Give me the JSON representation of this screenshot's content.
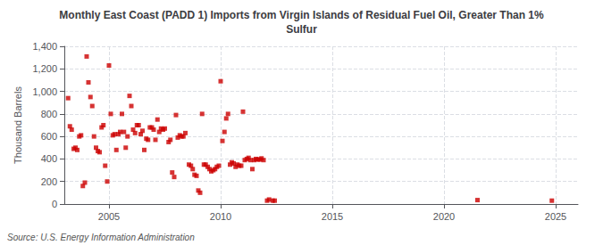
{
  "chart_data": {
    "type": "scatter",
    "title": "Monthly East Coast (PADD 1) Imports from Virgin Islands of Residual Fuel Oil, Greater Than 1%\nSulfur",
    "ylabel": "Thousand Barrels",
    "source": "Source: U.S. Energy Information Administration",
    "color": "#cc0000",
    "marker": "square",
    "grid": true,
    "xlim": [
      2003.0,
      2026.0
    ],
    "ylim": [
      0,
      1400
    ],
    "xticks": [
      2005,
      2010,
      2015,
      2020,
      2025
    ],
    "yticks": [
      0,
      200,
      400,
      600,
      800,
      {
        "value": 1000,
        "label": "1,000"
      },
      {
        "value": 1200,
        "label": "1,200"
      },
      {
        "value": 1400,
        "label": "1,400"
      }
    ],
    "x": [
      2003.17,
      2003.25,
      2003.33,
      2003.42,
      2003.5,
      2003.58,
      2003.67,
      2003.75,
      2003.83,
      2003.92,
      2004.0,
      2004.08,
      2004.17,
      2004.25,
      2004.33,
      2004.42,
      2004.5,
      2004.58,
      2004.67,
      2004.75,
      2004.83,
      2004.92,
      2005.0,
      2005.08,
      2005.17,
      2005.25,
      2005.33,
      2005.42,
      2005.5,
      2005.58,
      2005.67,
      2005.75,
      2005.83,
      2005.92,
      2006.0,
      2006.08,
      2006.17,
      2006.25,
      2006.33,
      2006.42,
      2006.5,
      2006.58,
      2006.67,
      2006.75,
      2006.83,
      2006.92,
      2007.0,
      2007.08,
      2007.17,
      2007.25,
      2007.33,
      2007.42,
      2007.5,
      2007.67,
      2007.75,
      2007.83,
      2007.92,
      2008.0,
      2008.08,
      2008.17,
      2008.25,
      2008.33,
      2008.42,
      2008.58,
      2008.67,
      2008.75,
      2008.83,
      2008.92,
      2009.0,
      2009.08,
      2009.17,
      2009.25,
      2009.33,
      2009.42,
      2009.5,
      2009.58,
      2009.67,
      2009.75,
      2009.83,
      2009.92,
      2010.0,
      2010.08,
      2010.17,
      2010.25,
      2010.33,
      2010.42,
      2010.5,
      2010.58,
      2010.67,
      2010.75,
      2010.83,
      2010.92,
      2011.0,
      2011.08,
      2011.17,
      2011.25,
      2011.33,
      2011.42,
      2011.5,
      2011.58,
      2011.67,
      2011.75,
      2011.83,
      2011.92,
      2012.08,
      2012.17,
      2012.33,
      2012.42,
      2021.5,
      2024.83
    ],
    "values": [
      940,
      690,
      660,
      490,
      500,
      480,
      600,
      610,
      160,
      190,
      1310,
      1080,
      950,
      870,
      600,
      500,
      470,
      460,
      680,
      700,
      340,
      200,
      1230,
      800,
      610,
      620,
      480,
      620,
      640,
      800,
      640,
      500,
      600,
      960,
      870,
      660,
      630,
      700,
      700,
      620,
      650,
      480,
      580,
      570,
      680,
      680,
      660,
      570,
      750,
      640,
      670,
      660,
      670,
      550,
      570,
      280,
      240,
      790,
      590,
      610,
      600,
      600,
      630,
      350,
      340,
      310,
      260,
      250,
      120,
      100,
      800,
      350,
      350,
      330,
      310,
      290,
      300,
      310,
      330,
      340,
      1090,
      560,
      640,
      760,
      800,
      350,
      370,
      360,
      330,
      350,
      340,
      340,
      820,
      390,
      400,
      410,
      390,
      310,
      390,
      400,
      395,
      395,
      405,
      390,
      30,
      40,
      30,
      30,
      35,
      30
    ]
  }
}
